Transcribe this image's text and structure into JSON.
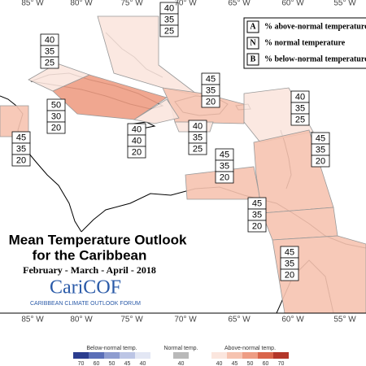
{
  "longitude_labels": [
    "85° W",
    "80° W",
    "75° W",
    "70° W",
    "65° W",
    "60° W",
    "55° W"
  ],
  "legend": [
    {
      "letter": "A",
      "text": "% above-normal temperature"
    },
    {
      "letter": "N",
      "text": "% normal temperature"
    },
    {
      "letter": "B",
      "text": "% below-normal temperature"
    }
  ],
  "regions": [
    {
      "values": [
        40,
        35,
        25
      ]
    },
    {
      "values": [
        40,
        35,
        25
      ]
    },
    {
      "values": [
        45,
        35,
        20
      ]
    },
    {
      "values": [
        50,
        30,
        20
      ]
    },
    {
      "values": [
        40,
        40,
        20
      ]
    },
    {
      "values": [
        40,
        35,
        25
      ]
    },
    {
      "values": [
        40,
        35,
        25
      ]
    },
    {
      "values": [
        45,
        35,
        20
      ]
    },
    {
      "values": [
        45,
        35,
        20
      ]
    },
    {
      "values": [
        45,
        35,
        20
      ]
    },
    {
      "values": [
        45,
        35,
        20
      ]
    },
    {
      "values": [
        45,
        35,
        20
      ]
    }
  ],
  "title": "Mean Temperature Outlook",
  "subtitle": "for the Caribbean",
  "season": "February - March - April - 2018",
  "logo": {
    "name": "CariCOF",
    "tagline": "CARIBBEAN CLIMATE OUTLOOK FORUM"
  },
  "colorbar": {
    "below": {
      "label": "Below-normal temp.",
      "ticks": [
        70,
        60,
        50,
        45,
        40
      ],
      "colors": [
        "#2b3d8f",
        "#5b6fb8",
        "#8f9dd0",
        "#bcc5e5",
        "#e3e7f4"
      ]
    },
    "normal": {
      "label": "Normal temp.",
      "ticks": [
        40
      ],
      "colors": [
        "#b9b9b9"
      ]
    },
    "above": {
      "label": "Above-normal temp.",
      "ticks": [
        40,
        45,
        50,
        60,
        70
      ],
      "colors": [
        "#fbe6de",
        "#f6c3b0",
        "#ee9d84",
        "#d9654b",
        "#b3372a"
      ]
    }
  }
}
